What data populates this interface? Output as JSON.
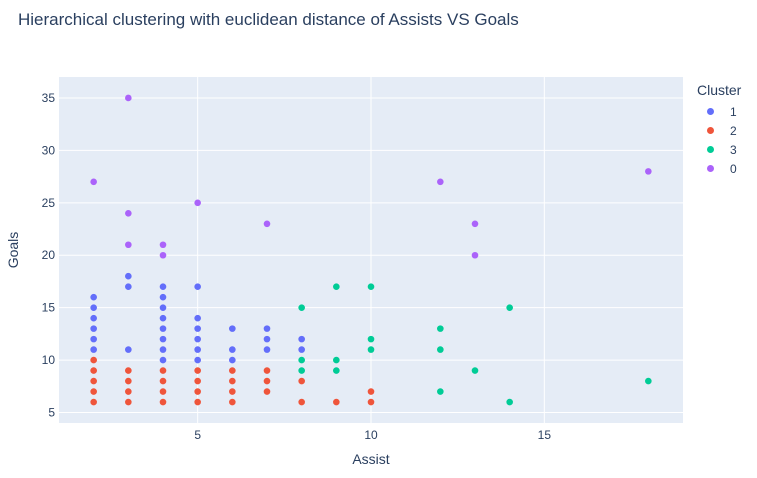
{
  "chart_data": {
    "type": "scatter",
    "title": "Hierarchical clustering with euclidean distance of Assists VS Goals",
    "xlabel": "Assist",
    "ylabel": "Goals",
    "xlim": [
      1,
      19
    ],
    "ylim": [
      4,
      37
    ],
    "xticks": [
      5,
      10,
      15
    ],
    "yticks": [
      5,
      10,
      15,
      20,
      25,
      30,
      35
    ],
    "grid": true,
    "legend_title": "Cluster",
    "legend_position": "top-right",
    "series": [
      {
        "name": "1",
        "color": "#636efa",
        "points": [
          [
            2,
            11
          ],
          [
            2,
            12
          ],
          [
            2,
            13
          ],
          [
            2,
            14
          ],
          [
            2,
            15
          ],
          [
            2,
            16
          ],
          [
            3,
            11
          ],
          [
            3,
            17
          ],
          [
            3,
            18
          ],
          [
            4,
            10
          ],
          [
            4,
            11
          ],
          [
            4,
            12
          ],
          [
            4,
            13
          ],
          [
            4,
            14
          ],
          [
            4,
            15
          ],
          [
            4,
            16
          ],
          [
            4,
            17
          ],
          [
            5,
            10
          ],
          [
            5,
            11
          ],
          [
            5,
            12
          ],
          [
            5,
            13
          ],
          [
            5,
            14
          ],
          [
            5,
            17
          ],
          [
            6,
            10
          ],
          [
            6,
            11
          ],
          [
            6,
            13
          ],
          [
            7,
            11
          ],
          [
            7,
            12
          ],
          [
            7,
            13
          ],
          [
            8,
            11
          ],
          [
            8,
            12
          ]
        ]
      },
      {
        "name": "2",
        "color": "#ef553b",
        "points": [
          [
            2,
            6
          ],
          [
            2,
            7
          ],
          [
            2,
            8
          ],
          [
            2,
            9
          ],
          [
            2,
            10
          ],
          [
            3,
            6
          ],
          [
            3,
            7
          ],
          [
            3,
            8
          ],
          [
            3,
            9
          ],
          [
            4,
            6
          ],
          [
            4,
            7
          ],
          [
            4,
            8
          ],
          [
            4,
            9
          ],
          [
            5,
            6
          ],
          [
            5,
            7
          ],
          [
            5,
            8
          ],
          [
            5,
            9
          ],
          [
            6,
            6
          ],
          [
            6,
            7
          ],
          [
            6,
            8
          ],
          [
            6,
            9
          ],
          [
            7,
            7
          ],
          [
            7,
            8
          ],
          [
            7,
            9
          ],
          [
            8,
            6
          ],
          [
            8,
            8
          ],
          [
            9,
            6
          ],
          [
            10,
            6
          ],
          [
            10,
            7
          ]
        ]
      },
      {
        "name": "3",
        "color": "#00cc96",
        "points": [
          [
            8,
            9
          ],
          [
            8,
            10
          ],
          [
            8,
            15
          ],
          [
            9,
            9
          ],
          [
            9,
            10
          ],
          [
            9,
            17
          ],
          [
            10,
            11
          ],
          [
            10,
            12
          ],
          [
            10,
            17
          ],
          [
            12,
            7
          ],
          [
            12,
            11
          ],
          [
            12,
            13
          ],
          [
            13,
            9
          ],
          [
            14,
            6
          ],
          [
            14,
            15
          ],
          [
            18,
            8
          ]
        ]
      },
      {
        "name": "0",
        "color": "#ab63fa",
        "points": [
          [
            2,
            27
          ],
          [
            3,
            21
          ],
          [
            3,
            24
          ],
          [
            3,
            35
          ],
          [
            4,
            20
          ],
          [
            4,
            21
          ],
          [
            5,
            25
          ],
          [
            7,
            23
          ],
          [
            12,
            27
          ],
          [
            13,
            20
          ],
          [
            13,
            23
          ],
          [
            18,
            28
          ]
        ]
      }
    ]
  }
}
